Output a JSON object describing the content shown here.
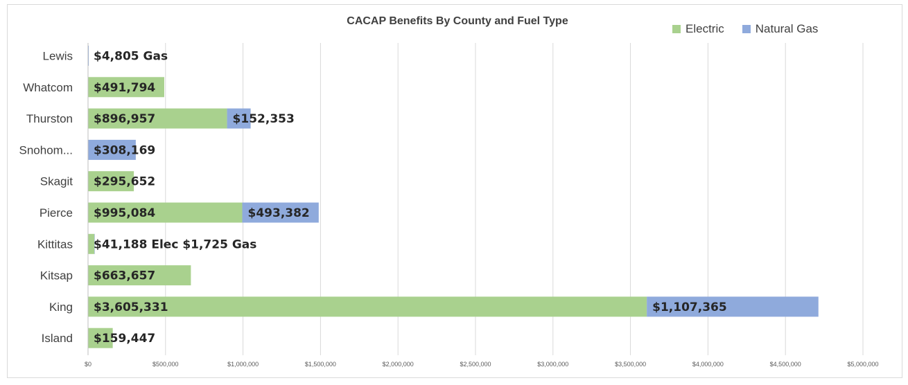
{
  "chart_data": {
    "type": "bar",
    "orientation": "horizontal",
    "stacked": true,
    "title": "CACAP Benefits By County and Fuel Type",
    "categories": [
      "Lewis",
      "Whatcom",
      "Thurston",
      "Snohom...",
      "Skagit",
      "Pierce",
      "Kittitas",
      "Kitsap",
      "King",
      "Island"
    ],
    "series": [
      {
        "name": "Electric",
        "color": "#a9d18e",
        "values": [
          0,
          491794,
          896957,
          0,
          295652,
          995084,
          41188,
          663657,
          3605331,
          159447
        ]
      },
      {
        "name": "Natural Gas",
        "color": "#8faadc",
        "values": [
          4805,
          0,
          152353,
          308169,
          0,
          493382,
          1725,
          0,
          1107365,
          0
        ]
      }
    ],
    "data_labels": [
      {
        "category": "Lewis",
        "series": "Natural Gas",
        "text": "$4,805 Gas"
      },
      {
        "category": "Whatcom",
        "series": "Electric",
        "text": "$491,794"
      },
      {
        "category": "Thurston",
        "series": "Electric",
        "text": "$896,957"
      },
      {
        "category": "Thurston",
        "series": "Natural Gas",
        "text": "$152,353"
      },
      {
        "category": "Snohom...",
        "series": "Natural Gas",
        "text": "$308,169"
      },
      {
        "category": "Skagit",
        "series": "Electric",
        "text": "$295,652"
      },
      {
        "category": "Pierce",
        "series": "Electric",
        "text": "$995,084"
      },
      {
        "category": "Pierce",
        "series": "Natural Gas",
        "text": "$493,382"
      },
      {
        "category": "Kittitas",
        "series": "Electric",
        "text": "$41,188 Elec $1,725 Gas"
      },
      {
        "category": "Kitsap",
        "series": "Electric",
        "text": "$663,657"
      },
      {
        "category": "King",
        "series": "Electric",
        "text": "$3,605,331"
      },
      {
        "category": "King",
        "series": "Natural Gas",
        "text": "$1,107,365"
      },
      {
        "category": "Island",
        "series": "Electric",
        "text": "$159,447"
      }
    ],
    "xlim": [
      0,
      5000000
    ],
    "xticks": [
      0,
      500000,
      1000000,
      1500000,
      2000000,
      2500000,
      3000000,
      3500000,
      4000000,
      4500000,
      5000000
    ],
    "xtick_labels": [
      "$0",
      "$500,000",
      "$1,000,000",
      "$1,500,000",
      "$2,000,000",
      "$2,500,000",
      "$3,000,000",
      "$3,500,000",
      "$4,000,000",
      "$4,500,000",
      "$5,000,000"
    ],
    "grid": true,
    "legend": "top-right"
  }
}
